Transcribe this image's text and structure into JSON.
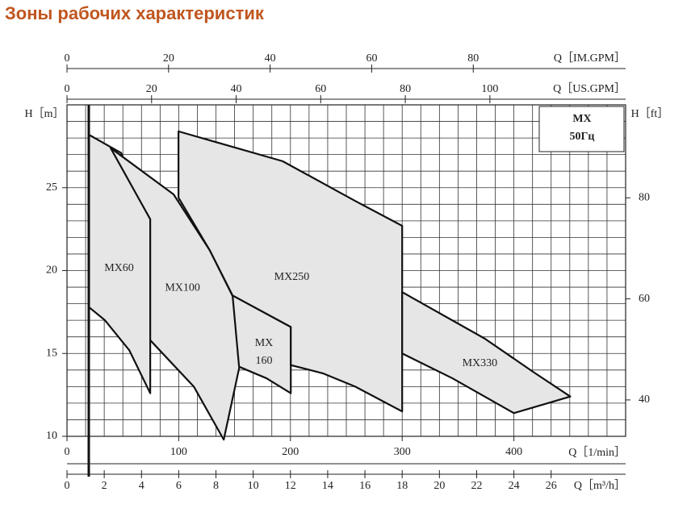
{
  "chart_data": {
    "type": "zone",
    "title": "Зоны рабочих характеристик",
    "legend_lines": [
      "MX",
      "50Гц"
    ],
    "xlim": [
      0,
      500
    ],
    "xlabel": "Q［1/min］",
    "xticks": [
      0,
      100,
      200,
      300,
      400
    ],
    "ylim": [
      10,
      30
    ],
    "ylabel": "H［m］",
    "yticks": [
      10,
      15,
      20,
      25
    ],
    "y2lim": [
      32.8,
      98.4
    ],
    "y2label": "H［ft］",
    "y2ticks": [
      40,
      60,
      80
    ],
    "extra_x_axes": [
      {
        "side": "top",
        "label": "Q［IM.GPM］",
        "lim": [
          0,
          110
        ],
        "ticks": [
          0,
          20,
          40,
          60,
          80
        ]
      },
      {
        "side": "top",
        "label": "Q［US.GPM］",
        "lim": [
          0,
          132.1
        ],
        "ticks": [
          0,
          20,
          40,
          60,
          80,
          100
        ]
      },
      {
        "side": "bottom",
        "label": "Q［m³/h］",
        "lim": [
          0,
          30
        ],
        "ticks": [
          0,
          2,
          4,
          6,
          8,
          10,
          12,
          14,
          16,
          18,
          20,
          22,
          24,
          26
        ]
      }
    ],
    "grid": {
      "x_step": 16.667,
      "y_step": 1
    },
    "reference_x": 19.5,
    "zone_color": "#e6e6e6",
    "zones": [
      {
        "label_lines": [
          "MX60"
        ],
        "x": [
          19.5,
          48.4,
          74.5,
          74.5,
          55.7,
          34,
          19.5
        ],
        "y": [
          28.2,
          27.1,
          23.1,
          12.6,
          15.2,
          17,
          17.8
        ]
      },
      {
        "label_lines": [
          "MX100"
        ],
        "x": [
          39,
          95.4,
          128,
          162,
          140.3,
          113.5,
          74.5,
          74.5
        ],
        "y": [
          27.4,
          24.6,
          21.2,
          16.6,
          9.8,
          13,
          15.8,
          23.1
        ]
      },
      {
        "label_lines": [
          "MX",
          "160"
        ],
        "x": [
          148.2,
          200.3,
          200.3,
          178.6,
          154
        ],
        "y": [
          18.5,
          16.6,
          12.6,
          13.5,
          14.2
        ]
      },
      {
        "label_lines": [
          "MX250"
        ],
        "x": [
          99.8,
          193,
          258,
          300,
          300,
          258,
          229,
          200.3,
          200.3,
          148.2,
          128,
          99.8
        ],
        "y": [
          28.4,
          26.6,
          24.2,
          22.7,
          11.5,
          13,
          13.8,
          14.3,
          16.6,
          18.5,
          21.2,
          24.4
        ]
      },
      {
        "label_lines": [
          "MX330"
        ],
        "x": [
          300,
          373.8,
          417,
          450.5,
          400,
          345,
          300
        ],
        "y": [
          18.7,
          15.9,
          13.9,
          12.4,
          11.4,
          13.5,
          15
        ]
      }
    ]
  }
}
